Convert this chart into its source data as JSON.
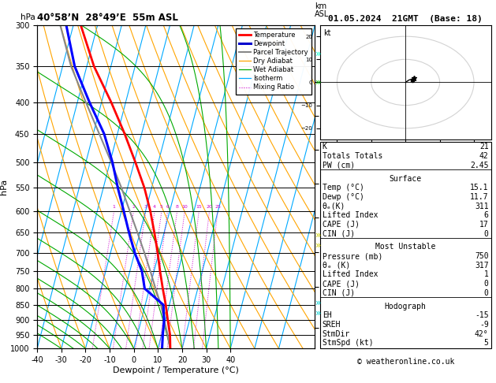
{
  "title_left": "40°58’N  28°49’E  55m ASL",
  "title_right": "01.05.2024  21GMT  (Base: 18)",
  "xlabel": "Dewpoint / Temperature (°C)",
  "pressure_levels": [
    300,
    350,
    400,
    450,
    500,
    550,
    600,
    650,
    700,
    750,
    800,
    850,
    900,
    950,
    1000
  ],
  "T_min": -40,
  "T_max": 40,
  "temp_color": "#ff0000",
  "dewp_color": "#0000ff",
  "parcel_color": "#888888",
  "dry_adiabat_color": "#ffa500",
  "wet_adiabat_color": "#00aa00",
  "isotherm_color": "#00aaff",
  "mixing_ratio_color": "#cc00cc",
  "legend_items": [
    {
      "label": "Temperature",
      "color": "#ff0000",
      "lw": 2.0,
      "ls": "-"
    },
    {
      "label": "Dewpoint",
      "color": "#0000cc",
      "lw": 2.2,
      "ls": "-"
    },
    {
      "label": "Parcel Trajectory",
      "color": "#888888",
      "lw": 1.5,
      "ls": "-"
    },
    {
      "label": "Dry Adiabat",
      "color": "#ffa500",
      "lw": 0.9,
      "ls": "-"
    },
    {
      "label": "Wet Adiabat",
      "color": "#00aa00",
      "lw": 0.9,
      "ls": "-"
    },
    {
      "label": "Isotherm",
      "color": "#00aaff",
      "lw": 0.9,
      "ls": "-"
    },
    {
      "label": "Mixing Ratio",
      "color": "#cc00cc",
      "lw": 0.8,
      "ls": ":"
    }
  ],
  "temp_profile": {
    "pressure": [
      1000,
      950,
      900,
      850,
      800,
      750,
      700,
      650,
      600,
      550,
      500,
      450,
      400,
      350,
      300
    ],
    "temp": [
      15.1,
      13.5,
      11.0,
      8.5,
      5.5,
      2.5,
      -0.5,
      -4.0,
      -8.0,
      -13.0,
      -19.5,
      -27.0,
      -36.0,
      -47.0,
      -57.0
    ]
  },
  "dewp_profile": {
    "pressure": [
      1000,
      950,
      900,
      850,
      800,
      750,
      700,
      650,
      600,
      550,
      500,
      450,
      400,
      350,
      300
    ],
    "dewp": [
      11.7,
      10.5,
      9.5,
      7.5,
      -2.0,
      -5.0,
      -10.0,
      -14.5,
      -19.0,
      -24.0,
      -29.0,
      -35.5,
      -45.0,
      -55.0,
      -63.0
    ]
  },
  "parcel_profile": {
    "pressure": [
      1000,
      950,
      900,
      850,
      800,
      750,
      700,
      650,
      600,
      550,
      500,
      450,
      400,
      350,
      300
    ],
    "temp": [
      15.1,
      12.5,
      9.5,
      6.5,
      2.5,
      -1.5,
      -6.0,
      -11.0,
      -16.5,
      -22.5,
      -29.5,
      -37.5,
      -46.5,
      -56.5,
      -65.5
    ]
  },
  "mixing_ratio_lines": [
    1,
    2,
    3,
    4,
    5,
    6,
    8,
    10,
    15,
    20,
    25
  ],
  "km_asl_ticks": {
    "1": 925,
    "2": 795,
    "3": 698,
    "4": 614,
    "5": 541,
    "6": 478,
    "7": 421,
    "8": 371
  },
  "lcl_pressure": 960,
  "info_K": 21,
  "info_TT": 42,
  "info_PW": "2.45",
  "surf_temp": "15.1",
  "surf_dewp": "11.7",
  "surf_theta": "311",
  "surf_li": "6",
  "surf_cape": "17",
  "surf_cin": "0",
  "mu_pres": "750",
  "mu_theta": "317",
  "mu_li": "1",
  "mu_cape": "0",
  "mu_cin": "0",
  "hodo_eh": "-15",
  "hodo_sreh": "-9",
  "hodo_stmdir": "42°",
  "hodo_stmspd": "5",
  "footer": "© weatheronline.co.uk",
  "skew_factor": 35
}
